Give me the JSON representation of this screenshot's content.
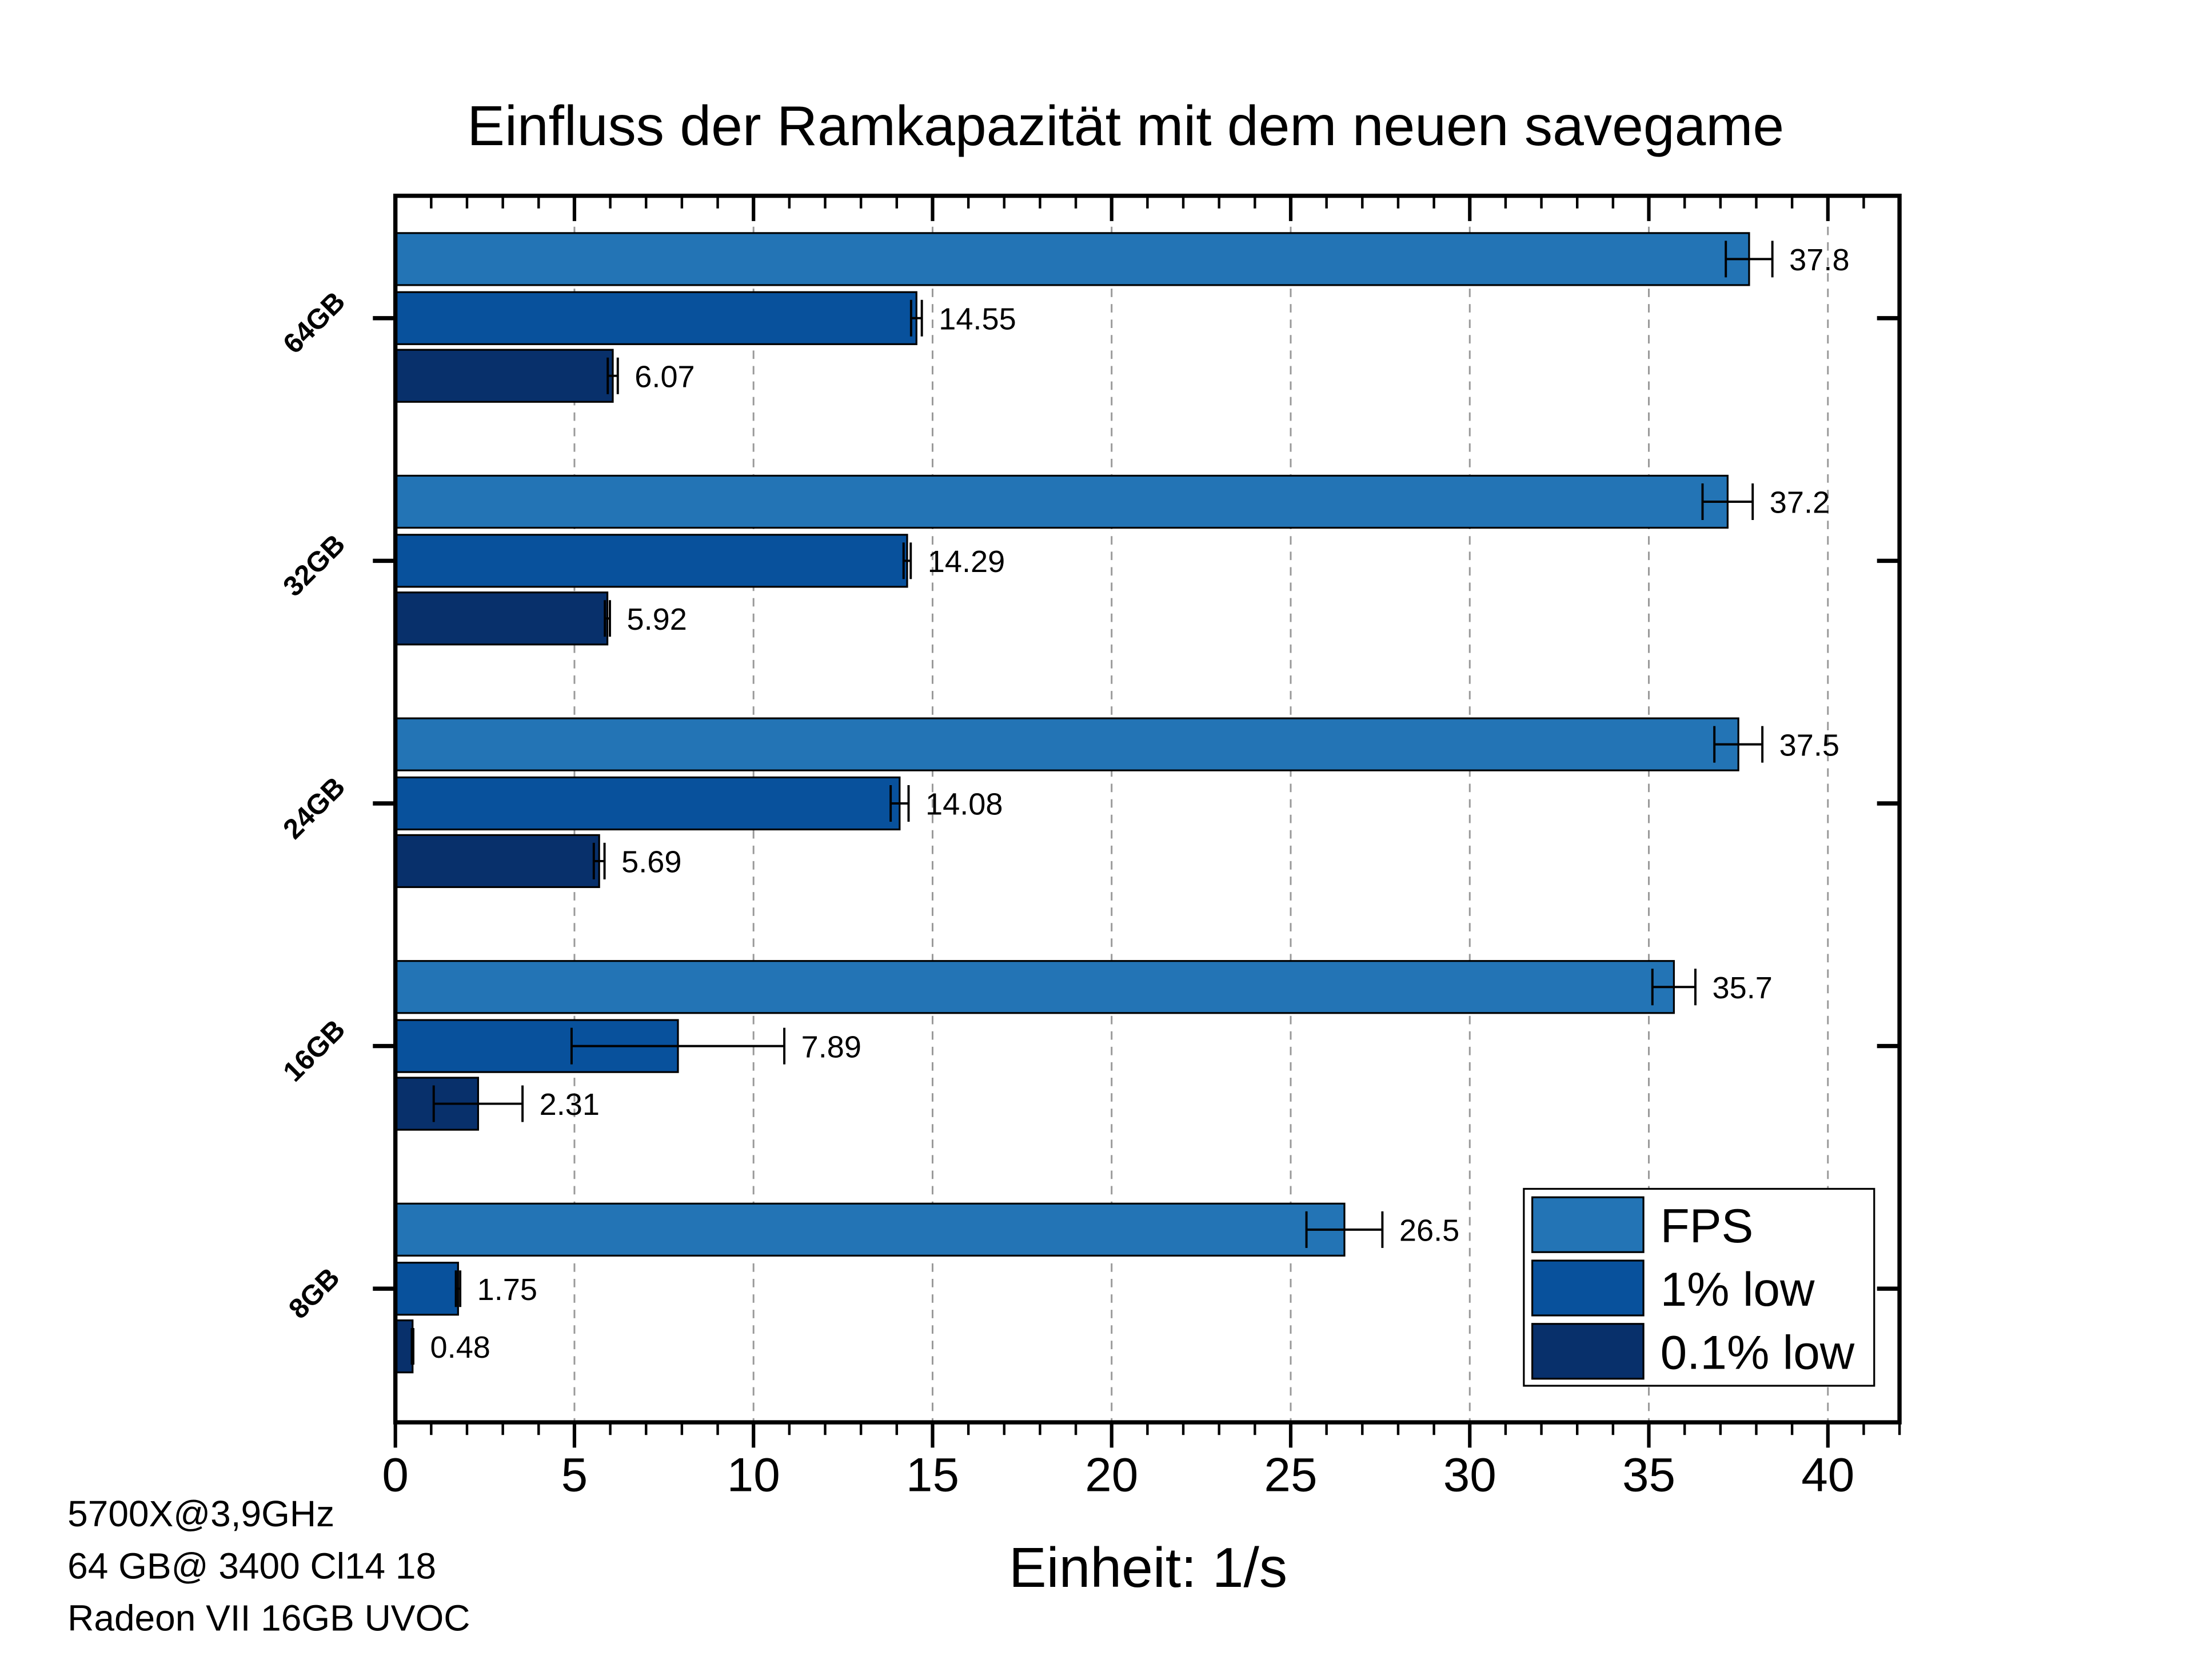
{
  "chart_data": {
    "type": "bar",
    "orientation": "horizontal",
    "title": "Einfluss der Ramkapazität mit dem neuen savegame",
    "xlabel": "Einheit: 1/s",
    "ylabel": "",
    "xlim": [
      0,
      42
    ],
    "xticks": [
      0,
      5,
      10,
      15,
      20,
      25,
      30,
      35,
      40
    ],
    "grid": "vertical dashed",
    "legend_position": "bottom-right",
    "categories": [
      "64GB",
      "32GB",
      "24GB",
      "16GB",
      "8GB"
    ],
    "series": [
      {
        "name": "FPS",
        "color": "#2374b5",
        "values": [
          37.8,
          37.2,
          37.5,
          35.7,
          26.5
        ],
        "errors": [
          0.65,
          0.7,
          0.67,
          0.6,
          1.06
        ],
        "labels": [
          "37.8",
          "37.2",
          "37.5",
          "35.7",
          "26.5"
        ]
      },
      {
        "name": "1% low",
        "color": "#08519c",
        "values": [
          14.55,
          14.29,
          14.08,
          7.89,
          1.75
        ],
        "errors": [
          0.15,
          0.1,
          0.25,
          2.97,
          0.06
        ],
        "labels": [
          "14.55",
          "14.29",
          "14.08",
          "7.89",
          "1.75"
        ]
      },
      {
        "name": "0.1% low",
        "color": "#08306b",
        "values": [
          6.07,
          5.92,
          5.69,
          2.31,
          0.48
        ],
        "errors": [
          0.14,
          0.07,
          0.15,
          1.24,
          0.02
        ],
        "labels": [
          "6.07",
          "5.92",
          "5.69",
          "2.31",
          "0.48"
        ]
      }
    ],
    "annotations": [
      "5700X@3,9GHz",
      "64 GB@ 3400 Cl14 18",
      "Radeon VII 16GB UVOC"
    ]
  }
}
